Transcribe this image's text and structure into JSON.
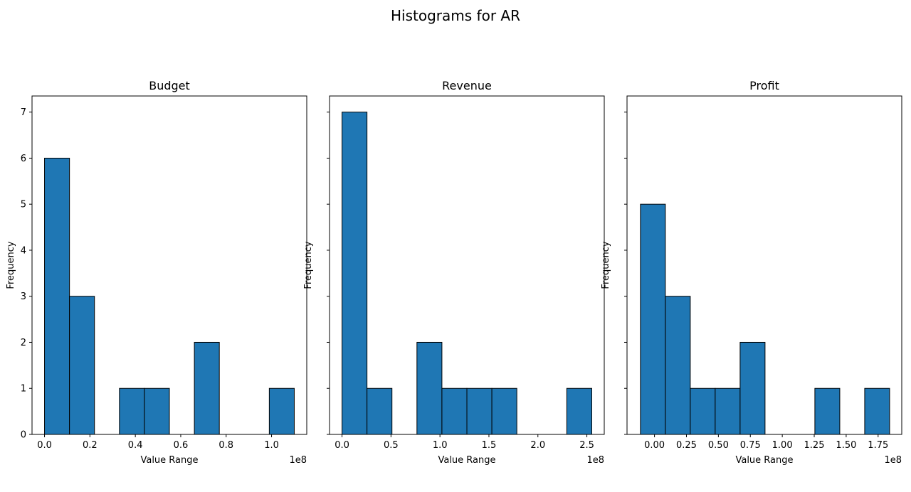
{
  "title": "Histograms for AR",
  "chart_data": [
    {
      "type": "bar",
      "title": "Budget",
      "xlabel": "Value Range",
      "ylabel": "Frequency",
      "offset_text": "1e8",
      "xlim": [
        -0.055,
        1.155
      ],
      "ylim": [
        0,
        7.35
      ],
      "bin_edges": [
        0.0,
        0.11,
        0.22,
        0.33,
        0.44,
        0.55,
        0.66,
        0.77,
        0.88,
        0.99,
        1.1
      ],
      "counts": [
        6,
        3,
        0,
        1,
        1,
        0,
        2,
        0,
        0,
        1
      ],
      "xticks": [
        0.0,
        0.2,
        0.4,
        0.6,
        0.8,
        1.0
      ],
      "xtick_labels": [
        "0.0",
        "0.2",
        "0.4",
        "0.6",
        "0.8",
        "1.0"
      ],
      "yticks": [
        0,
        1,
        2,
        3,
        4,
        5,
        6,
        7
      ],
      "ytick_labels": [
        "0",
        "1",
        "2",
        "3",
        "4",
        "5",
        "6",
        "7"
      ]
    },
    {
      "type": "bar",
      "title": "Revenue",
      "xlabel": "Value Range",
      "ylabel": "Frequency",
      "offset_text": "1e8",
      "xlim": [
        -0.1275,
        2.6775
      ],
      "ylim": [
        0,
        7.35
      ],
      "bin_edges": [
        0.0,
        0.255,
        0.51,
        0.765,
        1.02,
        1.275,
        1.53,
        1.785,
        2.04,
        2.295,
        2.55
      ],
      "counts": [
        7,
        1,
        0,
        2,
        1,
        1,
        1,
        0,
        0,
        1
      ],
      "xticks": [
        0.0,
        0.5,
        1.0,
        1.5,
        2.0,
        2.5
      ],
      "xtick_labels": [
        "0.0",
        "0.5",
        "1.0",
        "1.5",
        "2.0",
        "2.5"
      ],
      "yticks": [
        0,
        1,
        2,
        3,
        4,
        5,
        6,
        7
      ],
      "ytick_labels": []
    },
    {
      "type": "bar",
      "title": "Profit",
      "xlabel": "Value Range",
      "ylabel": "Frequency",
      "offset_text": "1e8",
      "xlim": [
        -0.215,
        1.935
      ],
      "ylim": [
        0,
        7.35
      ],
      "bin_edges": [
        -0.11,
        0.085,
        0.28,
        0.475,
        0.67,
        0.865,
        1.06,
        1.255,
        1.45,
        1.645,
        1.84
      ],
      "counts": [
        5,
        3,
        1,
        1,
        2,
        0,
        0,
        1,
        0,
        1
      ],
      "xticks": [
        0.0,
        0.25,
        0.5,
        0.75,
        1.0,
        1.25,
        1.5,
        1.75
      ],
      "xtick_labels": [
        "0.00",
        "0.25",
        "0.50",
        "0.75",
        "1.00",
        "1.25",
        "1.50",
        "1.75"
      ],
      "yticks": [
        0,
        1,
        2,
        3,
        4,
        5,
        6,
        7
      ],
      "ytick_labels": []
    }
  ],
  "colors": {
    "bar_fill": "#1f77b4",
    "bar_edge": "#000000",
    "axes": "#000000",
    "text": "#000000"
  }
}
